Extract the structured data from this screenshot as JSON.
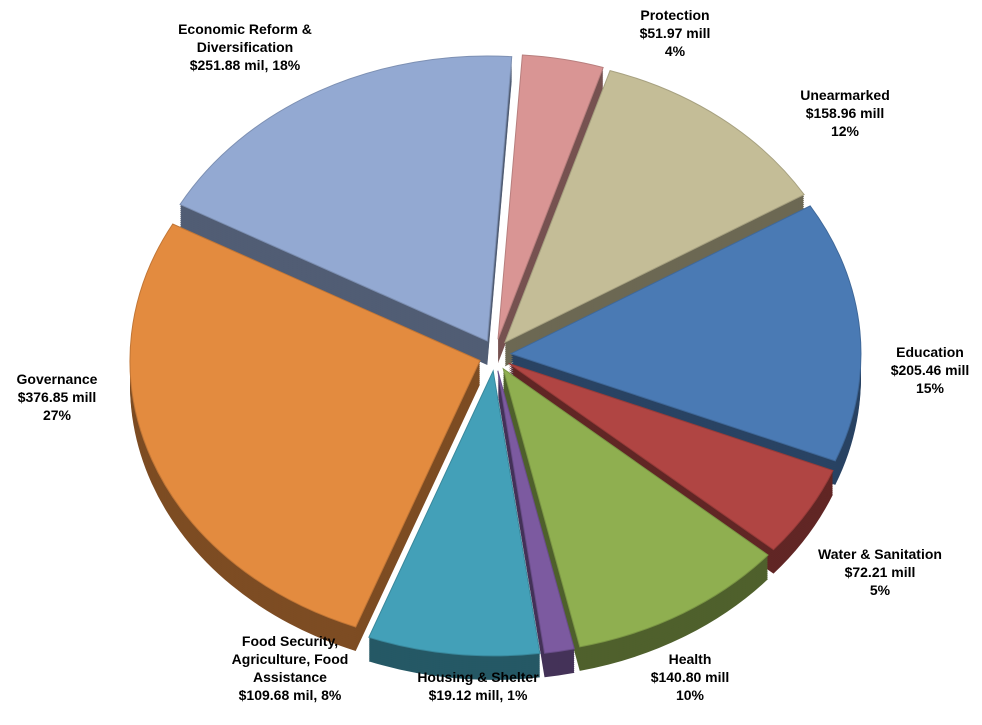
{
  "chart_data": {
    "type": "pie3d",
    "categories": [
      "Protection",
      "Unearmarked",
      "Education",
      "Water & Sanitation",
      "Health",
      "Housing & Shelter",
      "Food Security, Agriculture, Food Assistance",
      "Governance",
      "Economic Reform & Diversification"
    ],
    "values": [
      51.97,
      158.96,
      205.46,
      72.21,
      140.8,
      19.12,
      109.68,
      376.85,
      251.88
    ],
    "value_labels": [
      "$51.97 mill",
      "$158.96 mill",
      "$205.46 mill",
      "$72.21 mill",
      "$140.80 mill",
      "$19.12 mill,  1%",
      "$109.68 mil, 8%",
      "$376.85 mill",
      "$251.88 mil, 18%"
    ],
    "percent_labels": [
      "4%",
      "12%",
      "15%",
      "5%",
      "10%",
      null,
      null,
      "27%",
      null
    ],
    "colors": [
      "#d99594",
      "#c4bd97",
      "#4a7ab4",
      "#b04543",
      "#8faf50",
      "#7c5aa0",
      "#43a0b8",
      "#e38b3f",
      "#93a9d2"
    ]
  }
}
